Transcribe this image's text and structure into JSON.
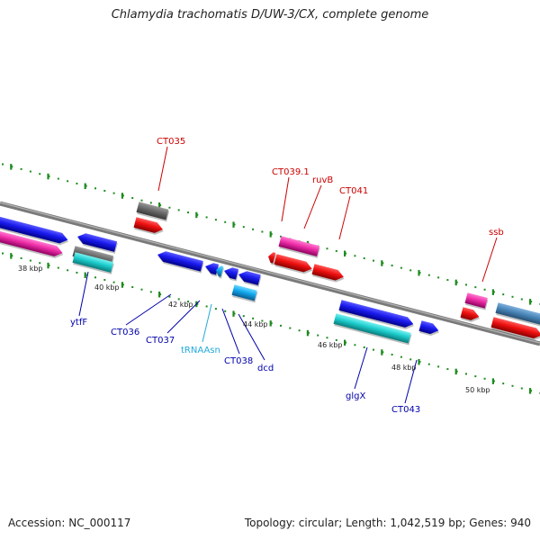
{
  "title": "Chlamydia trachomatis D/UW-3/CX, complete genome",
  "footer": {
    "accession": "Accession: NC_000117",
    "summary": "Topology: circular; Length: 1,042,519 bp; Genes: 940"
  },
  "colors": {
    "backbone": "#808080",
    "tick": "#1e8c1e",
    "label_red": "#cc0000",
    "label_blue": "#0000aa",
    "label_cyan": "#22aadd"
  },
  "scale_labels": [
    "38 kbp",
    "40 kbp",
    "42 kbp",
    "44 kbp",
    "46 kbp",
    "48 kbp",
    "50 kbp"
  ],
  "gene_labels": {
    "forward": [
      "CT035",
      "CT039.1",
      "ruvB",
      "CT041",
      "ssb"
    ],
    "reverse": [
      "ytfF",
      "CT036",
      "CT037",
      "tRNAAsn",
      "CT038",
      "dcd",
      "glgX",
      "CT043"
    ]
  }
}
